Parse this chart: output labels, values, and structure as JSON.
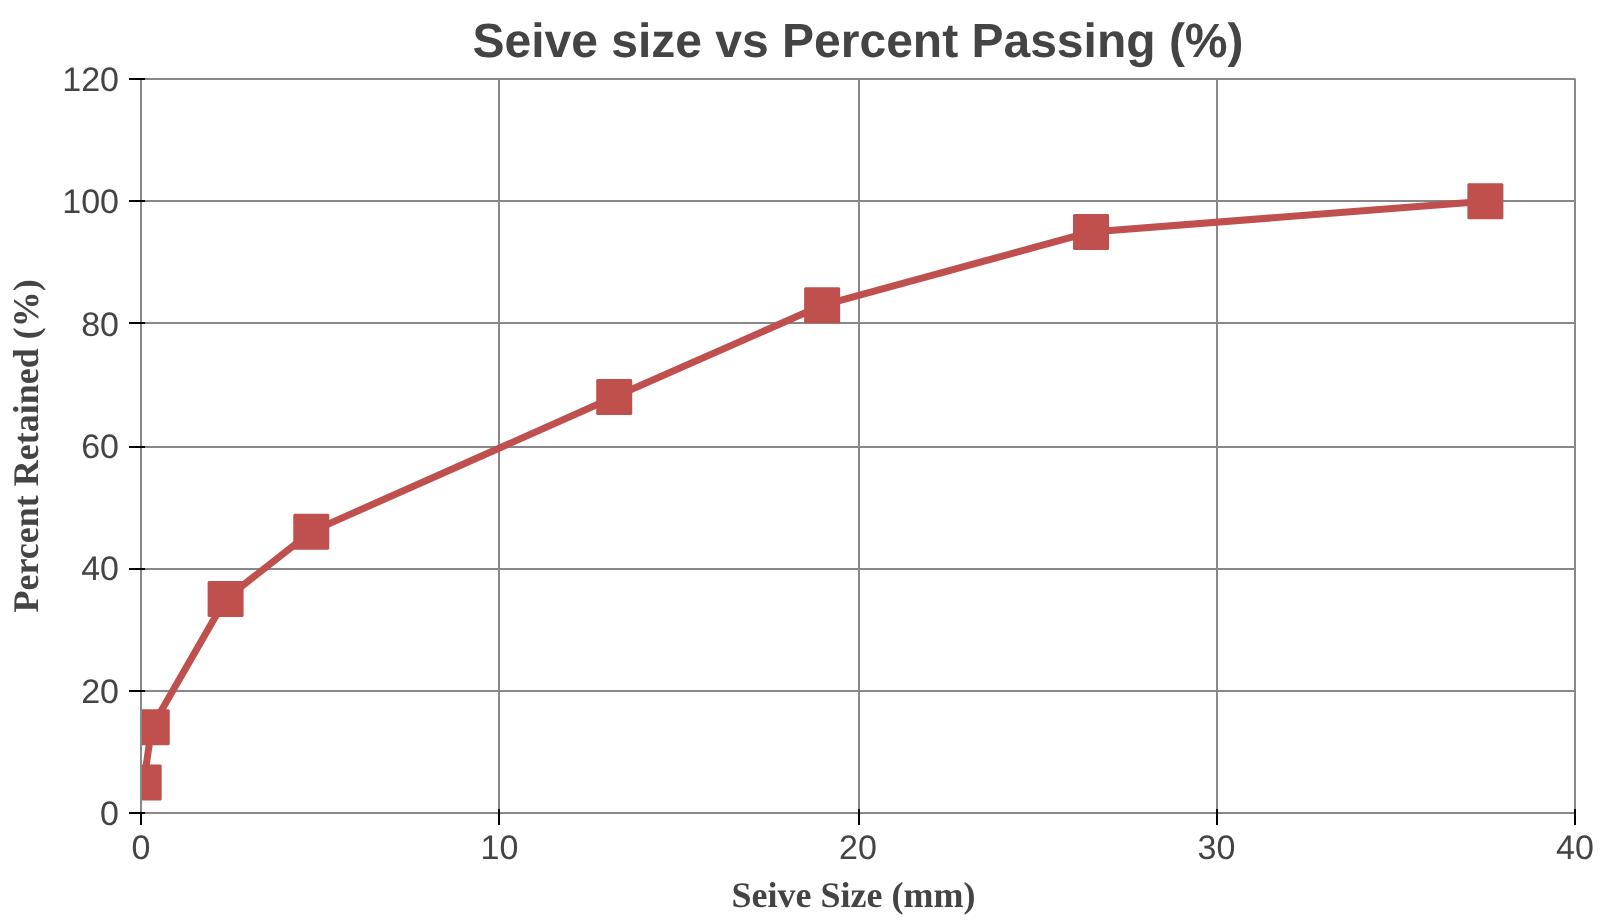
{
  "chart_data": {
    "type": "line",
    "title": "Seive size vs Percent Passing (%)",
    "xlabel": "Seive  Size (mm)",
    "ylabel": "Percent Retained (%)",
    "x": [
      0.075,
      0.3,
      2.36,
      4.75,
      13.2,
      19,
      26.5,
      37.5
    ],
    "series": [
      {
        "color": "#c0504d",
        "values": [
          5,
          14,
          35,
          46,
          68,
          83,
          95,
          100
        ]
      }
    ],
    "xlim": [
      0,
      40
    ],
    "xticks": [
      0,
      10,
      20,
      30,
      40
    ],
    "ylim": [
      0,
      120
    ],
    "yticks": [
      0,
      20,
      40,
      60,
      80,
      100,
      120
    ],
    "grid": true,
    "marker": "square",
    "line_style": "solid"
  }
}
